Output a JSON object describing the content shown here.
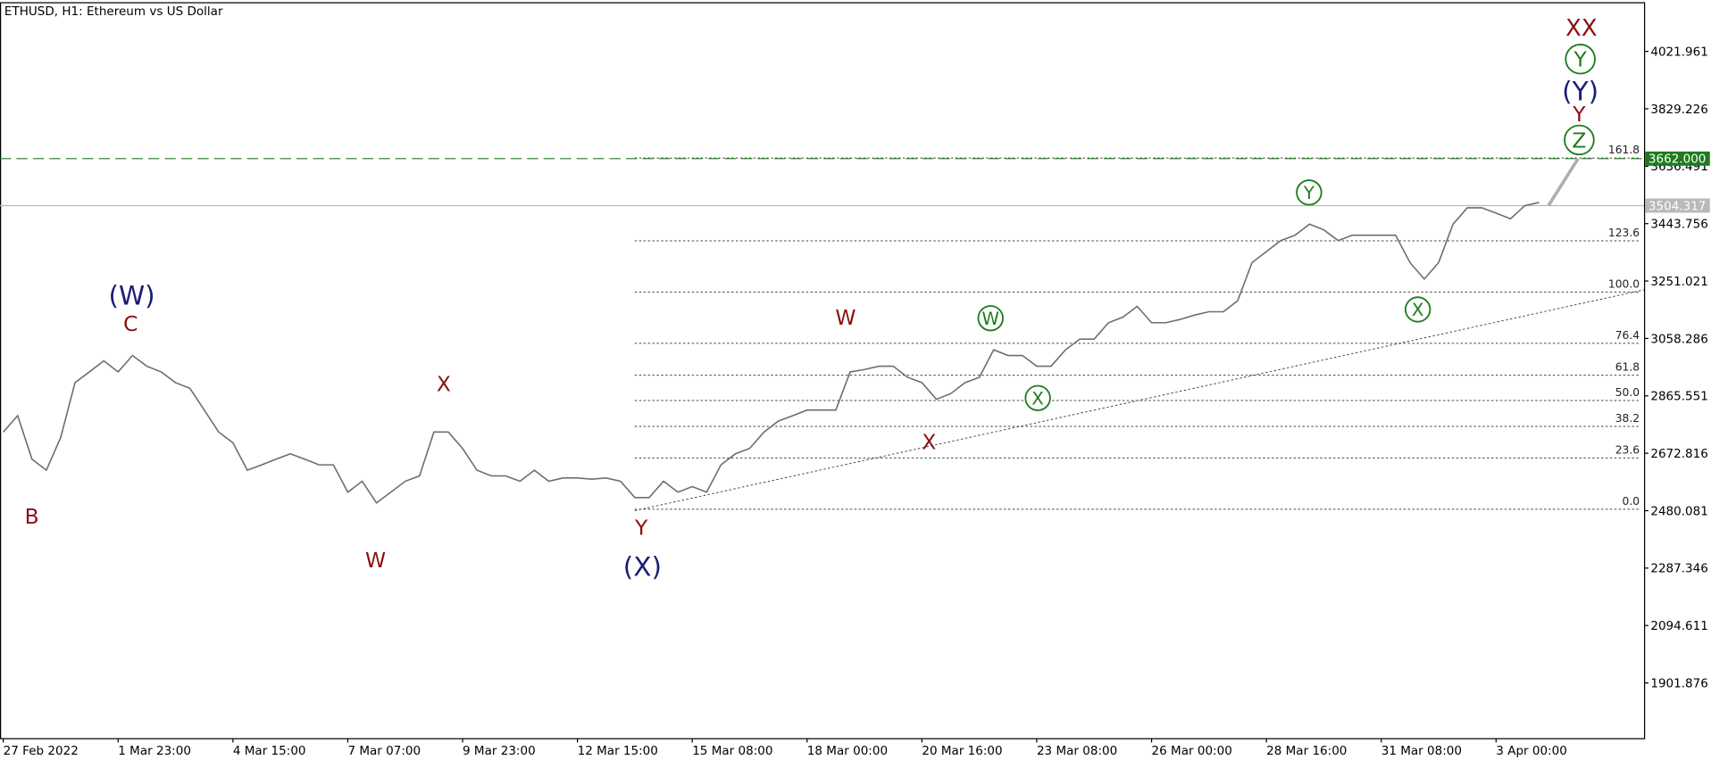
{
  "chart_data": {
    "type": "line",
    "title": "ETHUSD, H1:  Ethereum vs US Dollar",
    "categories": [
      "27 Feb 2022",
      null,
      null,
      null,
      null,
      null,
      null,
      null,
      "1 Mar 23:00",
      null,
      null,
      null,
      null,
      null,
      null,
      null,
      "4 Mar 15:00",
      null,
      null,
      null,
      null,
      null,
      null,
      null,
      "7 Mar 07:00",
      null,
      null,
      null,
      null,
      null,
      null,
      null,
      "9 Mar 23:00",
      null,
      null,
      null,
      null,
      null,
      null,
      null,
      "12 Mar 15:00",
      null,
      null,
      null,
      null,
      null,
      null,
      null,
      "15 Mar 08:00",
      null,
      null,
      null,
      null,
      null,
      null,
      null,
      "18 Mar 00:00",
      null,
      null,
      null,
      null,
      null,
      null,
      null,
      "20 Mar 16:00",
      null,
      null,
      null,
      null,
      null,
      null,
      null,
      "23 Mar 08:00",
      null,
      null,
      null,
      null,
      null,
      null,
      null,
      "26 Mar 00:00",
      null,
      null,
      null,
      null,
      null,
      null,
      null,
      "28 Mar 16:00",
      null,
      null,
      null,
      null,
      null,
      null,
      null,
      "31 Mar 08:00",
      null,
      null,
      null,
      null,
      null,
      null,
      null,
      "3 Apr 00:00",
      null,
      null,
      null
    ],
    "series": [
      {
        "color": "#6e6e6e",
        "values": [
          2744,
          2799,
          2653,
          2616,
          2726,
          2910,
          2946,
          2983,
          2946,
          3001,
          2965,
          2946,
          2910,
          2891,
          2818,
          2744,
          2708,
          2616,
          2634,
          2653,
          2671,
          2653,
          2634,
          2634,
          2542,
          2579,
          2506,
          2542,
          2579,
          2597,
          2744,
          2744,
          2689,
          2616,
          2597,
          2597,
          2579,
          2616,
          2579,
          2590,
          2590,
          2586,
          2590,
          2579,
          2524,
          2524,
          2579,
          2542,
          2561,
          2542,
          2634,
          2671,
          2689,
          2744,
          2781,
          2799,
          2818,
          2818,
          2818,
          2946,
          2954,
          2965,
          2965,
          2928,
          2910,
          2854,
          2873,
          2910,
          2928,
          3020,
          3001,
          3001,
          2965,
          2965,
          3020,
          3056,
          3056,
          3111,
          3130,
          3166,
          3111,
          3111,
          3122,
          3137,
          3148,
          3148,
          3185,
          3313,
          3350,
          3387,
          3405,
          3442,
          3423,
          3387,
          3405,
          3405,
          3405,
          3405,
          3313,
          3258,
          3313,
          3442,
          3497,
          3497,
          3479,
          3460,
          3504,
          3515
        ]
      }
    ],
    "ylim": [
      1716.5,
      4183.5
    ],
    "yticks": [
      1901.876,
      2094.611,
      2287.346,
      2480.081,
      2672.816,
      2865.551,
      3058.286,
      3251.021,
      3443.756,
      3636.491,
      3829.226,
      4021.961
    ],
    "price_lines": [
      {
        "value": 3662,
        "label": "3662.000",
        "color": "#1e7b1e",
        "style": "dashed"
      },
      {
        "value": 3504.317,
        "label": "3504.317",
        "color": "#b9b9b9",
        "style": "solid"
      }
    ],
    "fib_levels": [
      {
        "label": "0.0",
        "value": 2485
      },
      {
        "label": "23.6",
        "value": 2657
      },
      {
        "label": "38.2",
        "value": 2763
      },
      {
        "label": "50.0",
        "value": 2850
      },
      {
        "label": "61.8",
        "value": 2935
      },
      {
        "label": "76.4",
        "value": 3042
      },
      {
        "label": "100.0",
        "value": 3214
      },
      {
        "label": "123.6",
        "value": 3386
      },
      {
        "label": "161.8",
        "value": 3664
      }
    ],
    "annotations": [
      {
        "text": "(W)",
        "color": "#1c1c78",
        "circled": false
      },
      {
        "text": "C",
        "color": "#8a1010",
        "circled": false
      },
      {
        "text": "B",
        "color": "#8a1010",
        "circled": false
      },
      {
        "text": "W",
        "color": "#8a1010",
        "circled": false
      },
      {
        "text": "X",
        "color": "#8a1010",
        "circled": false
      },
      {
        "text": "Y",
        "color": "#8a1010",
        "circled": false
      },
      {
        "text": "(X)",
        "color": "#1c1c78",
        "circled": false
      },
      {
        "text": "W",
        "color": "#8a1010",
        "circled": false
      },
      {
        "text": "X",
        "color": "#8a1010",
        "circled": false
      },
      {
        "text": "W",
        "color": "#1e7b1e",
        "circled": true
      },
      {
        "text": "X",
        "color": "#1e7b1e",
        "circled": true
      },
      {
        "text": "Y",
        "color": "#1e7b1e",
        "circled": true
      },
      {
        "text": "X",
        "color": "#1e7b1e",
        "circled": true
      },
      {
        "text": "XX",
        "color": "#8a1010",
        "circled": false
      },
      {
        "text": "Y",
        "color": "#1e7b1e",
        "circled": true
      },
      {
        "text": "(Y)",
        "color": "#1c1c78",
        "circled": false
      },
      {
        "text": "Y",
        "color": "#8a1010",
        "circled": false
      },
      {
        "text": "Z",
        "color": "#1e7b1e",
        "circled": true
      }
    ]
  }
}
